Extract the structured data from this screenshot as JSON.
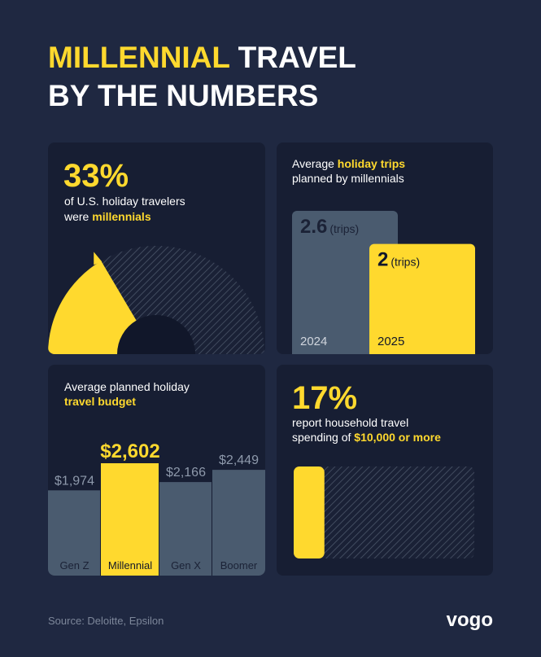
{
  "title_parts": [
    "MILLENNIAL",
    "TRAVEL",
    "BY THE NUMBERS"
  ],
  "source": "Source: Deloitte, Epsilon",
  "logo": "vogo",
  "chart_data": [
    {
      "type": "gauge",
      "values": [
        33
      ],
      "value_labels": [
        "33%"
      ],
      "xlim": [
        0,
        100
      ],
      "color": "#ffd92e",
      "subtitle_parts": [
        "of U.S. holiday travelers",
        "were",
        "millennials"
      ]
    },
    {
      "type": "bar",
      "title_parts": [
        "Average",
        "holiday trips",
        "planned by millennials"
      ],
      "categories": [
        "2024",
        "2025"
      ],
      "values": [
        2.6,
        2
      ],
      "value_suffix": "(trips)",
      "colors": [
        "#4a5b6f",
        "#ffd92e"
      ]
    },
    {
      "type": "bar",
      "title_parts": [
        "Average planned holiday",
        "travel budget"
      ],
      "categories": [
        "Gen Z",
        "Millennial",
        "Gen X",
        "Boomer"
      ],
      "values": [
        1974,
        2602,
        2166,
        2449
      ],
      "value_labels": [
        "$1,974",
        "$2,602",
        "$2,166",
        "$2,449"
      ],
      "colors": [
        "#4a5b6f",
        "#ffd92e",
        "#4a5b6f",
        "#4a5b6f"
      ]
    },
    {
      "type": "progress",
      "values": [
        17
      ],
      "value_labels": [
        "17%"
      ],
      "xlim": [
        0,
        100
      ],
      "color": "#ffd92e",
      "subtitle_parts": [
        "report household travel",
        "spending of",
        "$10,000 or more"
      ]
    }
  ]
}
